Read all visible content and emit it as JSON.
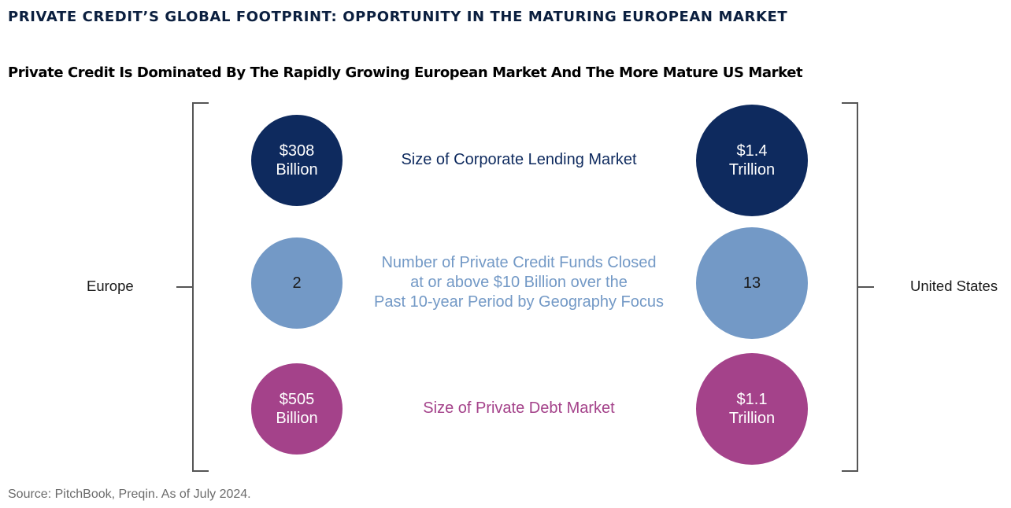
{
  "header": {
    "title": "PRIVATE CREDIT’S GLOBAL FOOTPRINT: OPPORTUNITY IN THE MATURING EUROPEAN MARKET",
    "subtitle": "Private Credit Is Dominated By The Rapidly Growing European Market And The More Mature US Market"
  },
  "left_label": "Europe",
  "right_label": "United States",
  "rows": [
    {
      "label_lines": [
        "Size of Corporate Lending Market"
      ],
      "color": "#0e2a5e",
      "europe_lines": [
        "$308",
        "Billion"
      ],
      "us_lines": [
        "$1.4",
        "Trillion"
      ]
    },
    {
      "label_lines": [
        "Number of Private Credit Funds Closed",
        "at or above $10 Billion over the",
        "Past 10-year Period by Geography Focus"
      ],
      "color": "#7399c6",
      "europe_lines": [
        "2"
      ],
      "us_lines": [
        "13"
      ]
    },
    {
      "label_lines": [
        "Size of Private Debt Market"
      ],
      "color": "#a4428a",
      "europe_lines": [
        "$505",
        "Billion"
      ],
      "us_lines": [
        "$1.1",
        "Trillion"
      ]
    }
  ],
  "source": "Source: PitchBook, Preqin. As of July 2024."
}
